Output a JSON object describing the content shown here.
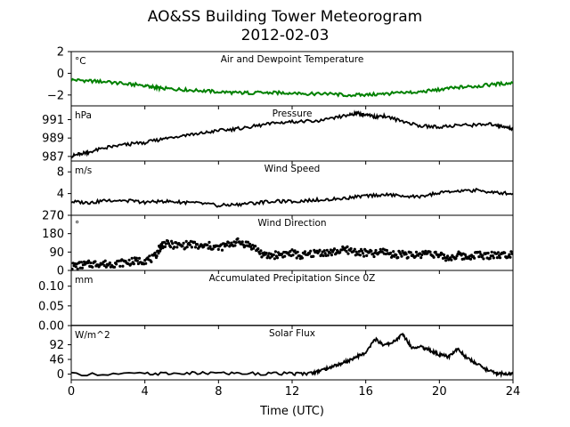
{
  "chart_data": {
    "type": "line",
    "title": "AO&SS Building Tower Meteorogram",
    "subtitle": "2012-02-03",
    "xlabel": "Time (UTC)",
    "xlim": [
      0,
      24
    ],
    "xticks": [
      "0",
      "4",
      "8",
      "12",
      "16",
      "20",
      "24"
    ],
    "panels": [
      {
        "id": "temp",
        "panel_title": "Air and Dewpoint Temperature",
        "unit": "°C",
        "ylim": [
          -3,
          2
        ],
        "yticks": [
          "2",
          "0",
          "−2"
        ],
        "ytick_values": [
          2,
          0,
          -2
        ],
        "series": [
          {
            "kind": "line",
            "color": "#008000",
            "x": [
              0,
              1,
              2,
              3,
              4,
              4.5,
              5,
              6,
              7,
              8,
              9,
              10,
              11,
              12,
              13,
              14,
              15,
              16,
              17,
              18,
              19,
              20,
              21,
              22,
              23,
              24
            ],
            "y": [
              -0.6,
              -0.7,
              -0.8,
              -1.0,
              -1.1,
              -1.3,
              -1.4,
              -1.5,
              -1.6,
              -1.7,
              -1.8,
              -1.8,
              -1.8,
              -1.8,
              -1.9,
              -1.9,
              -2.0,
              -2.0,
              -1.9,
              -1.8,
              -1.7,
              -1.5,
              -1.3,
              -1.2,
              -1.0,
              -0.9
            ]
          }
        ]
      },
      {
        "id": "pressure",
        "panel_title": "Pressure",
        "unit": "hPa",
        "ylim": [
          986.5,
          992.5
        ],
        "yticks": [
          "991",
          "989",
          "987"
        ],
        "ytick_values": [
          991,
          989,
          987
        ],
        "series": [
          {
            "kind": "line",
            "color": "#000000",
            "x": [
              0,
              0.5,
              1,
              2,
              3,
              4,
              5,
              6,
              7,
              8,
              9,
              10,
              11,
              12,
              13,
              14,
              15,
              15.5,
              16,
              16.5,
              17,
              18,
              19,
              20,
              21,
              22,
              23,
              23.5,
              24
            ],
            "y": [
              987.0,
              987.3,
              987.5,
              988.0,
              988.3,
              988.5,
              988.9,
              989.3,
              989.5,
              989.8,
              990.0,
              990.3,
              990.6,
              990.8,
              990.8,
              991.0,
              991.5,
              991.7,
              991.5,
              991.3,
              991.4,
              990.8,
              990.3,
              990.2,
              990.4,
              990.4,
              990.5,
              990.2,
              990.0
            ]
          }
        ]
      },
      {
        "id": "wind_speed",
        "panel_title": "Wind Speed",
        "unit": "m/s",
        "ylim": [
          0,
          10
        ],
        "yticks": [
          "8",
          "4",
          "0"
        ],
        "ytick_values": [
          8,
          4,
          0
        ],
        "series": [
          {
            "kind": "line",
            "color": "#000000",
            "x": [
              0,
              1,
              2,
              3,
              4,
              5,
              6,
              7,
              8,
              9,
              10,
              11,
              12,
              13,
              14,
              15,
              16,
              17,
              18,
              19,
              20,
              21,
              22,
              23,
              24
            ],
            "y": [
              2.5,
              2.3,
              2.8,
              2.7,
              2.4,
              2.6,
              2.4,
              2.2,
              1.8,
              2.0,
              2.3,
              2.6,
              2.5,
              2.8,
              2.9,
              3.2,
              3.6,
              3.8,
              3.6,
              3.4,
              4.2,
              4.4,
              4.6,
              4.2,
              4.0
            ]
          }
        ]
      },
      {
        "id": "wind_dir",
        "panel_title": "Wind Direction",
        "unit": "°",
        "ylim": [
          0,
          270
        ],
        "yticks": [
          "270",
          "180",
          "90",
          "0"
        ],
        "ytick_values": [
          270,
          180,
          90,
          0
        ],
        "series": [
          {
            "kind": "scatter",
            "color": "#000000",
            "x": [
              0,
              0.5,
              1,
              1.5,
              2,
              2.5,
              3,
              3.5,
              4,
              4.5,
              4.8,
              5,
              5.5,
              6,
              6.5,
              7,
              7.5,
              8,
              8.5,
              9,
              9.5,
              10,
              10.5,
              11,
              11.5,
              12,
              12.5,
              13,
              13.5,
              14,
              14.5,
              15,
              15.5,
              16,
              16.5,
              17,
              17.5,
              18,
              18.5,
              19,
              19.5,
              20,
              20.5,
              21,
              21.5,
              22,
              22.5,
              23,
              23.5,
              24
            ],
            "y": [
              20,
              25,
              30,
              35,
              30,
              35,
              40,
              45,
              50,
              60,
              110,
              130,
              125,
              120,
              130,
              115,
              120,
              110,
              125,
              140,
              130,
              110,
              70,
              75,
              80,
              85,
              70,
              80,
              90,
              85,
              95,
              100,
              90,
              85,
              80,
              95,
              75,
              85,
              70,
              80,
              90,
              70,
              60,
              75,
              65,
              80,
              70,
              80,
              75,
              85
            ]
          }
        ]
      },
      {
        "id": "precip",
        "panel_title": "Accumulated Precipitation Since 0Z",
        "unit": "mm",
        "ylim": [
          0,
          0.14
        ],
        "yticks": [
          "0.10",
          "0.05",
          "0.00"
        ],
        "ytick_values": [
          0.1,
          0.05,
          0.0
        ],
        "series": [
          {
            "kind": "line",
            "color": "#000000",
            "x": [
              0,
              24
            ],
            "y": [
              0,
              0
            ]
          }
        ]
      },
      {
        "id": "solar",
        "panel_title": "Solar Flux",
        "unit": "W/m^2",
        "ylim": [
          -18,
          152
        ],
        "yticks": [
          "92",
          "46",
          "0"
        ],
        "ytick_values": [
          92,
          46,
          0
        ],
        "series": [
          {
            "kind": "line",
            "color": "#000000",
            "x": [
              0,
              4,
              6,
              8,
              10,
              12,
              13,
              13.5,
              14,
              14.5,
              15,
              15.5,
              16,
              16.5,
              17,
              17.5,
              18,
              18.5,
              19,
              19.5,
              20,
              20.5,
              21,
              21.5,
              22,
              22.5,
              23,
              23.5,
              24
            ],
            "y": [
              0,
              1,
              2,
              3,
              2,
              1,
              2,
              10,
              20,
              30,
              40,
              55,
              65,
              110,
              90,
              100,
              125,
              85,
              85,
              75,
              60,
              55,
              80,
              50,
              35,
              15,
              5,
              1,
              0
            ]
          }
        ]
      }
    ]
  }
}
